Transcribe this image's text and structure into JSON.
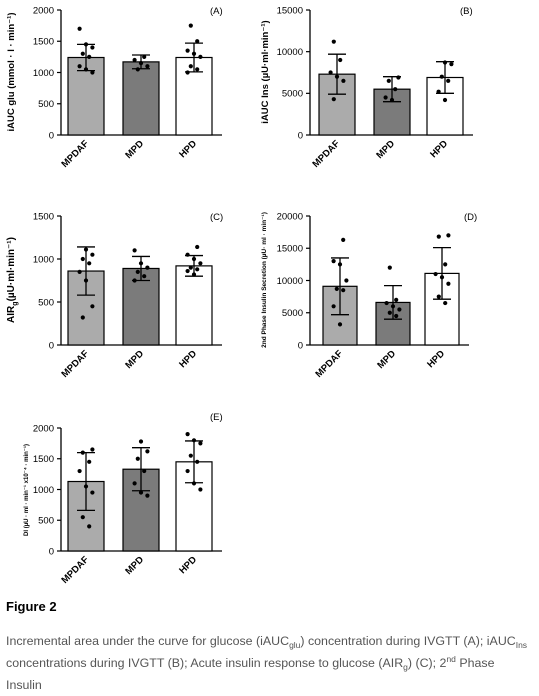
{
  "figure": {
    "title": "Figure 2",
    "caption": {
      "p1": "Incremental area under the curve for glucose (iAUC",
      "p1_sub": "glu",
      "p2": ") concentration during IVGTT (A);  iAUC",
      "p2_sub": "Ins",
      "p3": "concentrations during IVGTT (B); Acute insulin response to glucose (AIR",
      "p3_sub": "g",
      "p4": ") (C); 2",
      "p4_sup": "nd",
      "p5": " Phase Insulin"
    }
  },
  "colors": {
    "MPDAF": "#ababab",
    "MPD": "#7b7b7b",
    "HPD": "#ffffff",
    "stroke": "#000000"
  },
  "chart_data": [
    {
      "id": "A",
      "type": "bar",
      "panel_label": "(A)",
      "ylabel": "iAUC glu (mmol · l · min⁻¹)",
      "categories": [
        "MPDAF",
        "MPD",
        "HPD"
      ],
      "values": [
        1240,
        1170,
        1240
      ],
      "errors": [
        210,
        110,
        230
      ],
      "ylim": [
        0,
        2000
      ],
      "yticks": [
        0,
        500,
        1000,
        1500,
        2000
      ],
      "ytick_labels": [
        "0",
        "500",
        "1000",
        "1500",
        "2000"
      ],
      "points": [
        [
          1700,
          1450,
          1400,
          1300,
          1250,
          1100,
          1050,
          1000
        ],
        [
          1250,
          1200,
          1150,
          1100,
          1050
        ],
        [
          1750,
          1500,
          1350,
          1300,
          1250,
          1100,
          1050,
          1000
        ]
      ]
    },
    {
      "id": "B",
      "type": "bar",
      "panel_label": "(B)",
      "ylabel": "iAUC Ins (µU·ml·min⁻¹)",
      "categories": [
        "MPDAF",
        "MPD",
        "HPD"
      ],
      "values": [
        7300,
        5500,
        6900
      ],
      "errors": [
        2400,
        1500,
        1900
      ],
      "ylim": [
        0,
        15000
      ],
      "yticks": [
        0,
        5000,
        10000,
        15000
      ],
      "ytick_labels": [
        "0",
        "5000",
        "10000",
        "15000"
      ],
      "points": [
        [
          11200,
          9000,
          7500,
          7000,
          6500,
          4300
        ],
        [
          6900,
          6500,
          5500,
          4500,
          4200
        ],
        [
          8700,
          8500,
          7000,
          6500,
          5200,
          4200
        ]
      ]
    },
    {
      "id": "C",
      "type": "bar",
      "panel_label": "(C)",
      "ylabel": "AIRg(µU·ml·min⁻¹)",
      "ylabel_main": "AIR",
      "ylabel_sub": "g",
      "ylabel_rest": "(µU·ml·min⁻¹)",
      "categories": [
        "MPDAF",
        "MPD",
        "HPD"
      ],
      "values": [
        860,
        890,
        920
      ],
      "errors": [
        280,
        140,
        120
      ],
      "ylim": [
        0,
        1500
      ],
      "yticks": [
        0,
        500,
        1000,
        1500
      ],
      "ytick_labels": [
        "0",
        "500",
        "1000",
        "1500"
      ],
      "points": [
        [
          1110,
          1050,
          1000,
          950,
          850,
          750,
          450,
          320
        ],
        [
          1100,
          950,
          900,
          850,
          800,
          750
        ],
        [
          1140,
          1050,
          1000,
          950,
          900,
          880,
          860,
          820
        ]
      ]
    },
    {
      "id": "D",
      "type": "bar",
      "panel_label": "(D)",
      "ylabel": "2nd Phase Insulin Secretion (µU· ml · min⁻¹)",
      "categories": [
        "MPDAF",
        "MPD",
        "HPD"
      ],
      "values": [
        9100,
        6600,
        11100
      ],
      "errors": [
        4400,
        2600,
        4000
      ],
      "ylim": [
        0,
        20000
      ],
      "yticks": [
        0,
        5000,
        10000,
        15000,
        20000
      ],
      "ytick_labels": [
        "0",
        "5000",
        "10000",
        "15000",
        "20000"
      ],
      "points": [
        [
          16300,
          13000,
          12500,
          10000,
          8700,
          8500,
          6000,
          3200
        ],
        [
          12000,
          7000,
          6500,
          6000,
          5500,
          5000,
          4500
        ],
        [
          17000,
          16800,
          12500,
          11000,
          10500,
          9500,
          7500,
          6500
        ]
      ]
    },
    {
      "id": "E",
      "type": "bar",
      "panel_label": "(E)",
      "ylabel": "DI (µU · ml · min⁻¹ x10⁻⁴ · min⁻¹)",
      "categories": [
        "MPDAF",
        "MPD",
        "HPD"
      ],
      "values": [
        1130,
        1330,
        1450
      ],
      "errors": [
        470,
        350,
        340
      ],
      "ylim": [
        0,
        2000
      ],
      "yticks": [
        0,
        500,
        1000,
        1500,
        2000
      ],
      "ytick_labels": [
        "0",
        "500",
        "1000",
        "1500",
        "2000"
      ],
      "points": [
        [
          1650,
          1600,
          1450,
          1300,
          1050,
          950,
          550,
          400
        ],
        [
          1780,
          1620,
          1500,
          1300,
          1100,
          950,
          900
        ],
        [
          1900,
          1800,
          1750,
          1550,
          1450,
          1300,
          1100,
          1000
        ]
      ]
    }
  ]
}
